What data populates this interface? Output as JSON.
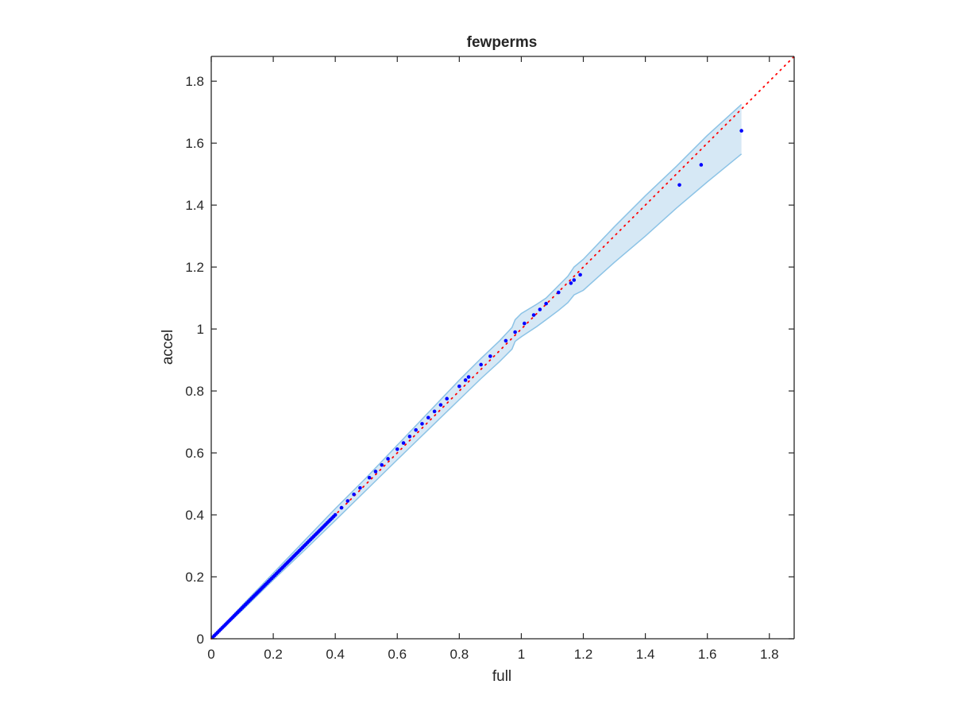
{
  "chart_data": {
    "type": "scatter",
    "title": "fewperms",
    "xlabel": "full",
    "ylabel": "accel",
    "xlim": [
      0,
      1.88
    ],
    "ylim": [
      0,
      1.88
    ],
    "x_ticks": [
      0,
      0.2,
      0.4,
      0.6,
      0.8,
      1,
      1.2,
      1.4,
      1.6,
      1.8
    ],
    "y_ticks": [
      0,
      0.2,
      0.4,
      0.6,
      0.8,
      1,
      1.2,
      1.4,
      1.6,
      1.8
    ],
    "x_tick_labels": [
      "0",
      "0.2",
      "0.4",
      "0.6",
      "0.8",
      "1",
      "1.2",
      "1.4",
      "1.6",
      "1.8"
    ],
    "y_tick_labels": [
      "0",
      "0.2",
      "0.4",
      "0.6",
      "0.8",
      "1",
      "1.2",
      "1.4",
      "1.6",
      "1.8"
    ],
    "grid": false,
    "legend": "none",
    "colors": {
      "points": "#0000ff",
      "reference_line": "#ff0000",
      "band_fill": "#d6e8f5",
      "band_edge": "#8cc3e6",
      "axes": "#262626"
    },
    "reference_line": {
      "style": "dotted",
      "x": [
        0,
        1.88
      ],
      "y": [
        0,
        1.88
      ]
    },
    "confidence_band": {
      "x": [
        0,
        0.05,
        0.1,
        0.2,
        0.3,
        0.4,
        0.5,
        0.6,
        0.7,
        0.8,
        0.87,
        0.93,
        0.97,
        0.98,
        1.0,
        1.05,
        1.08,
        1.12,
        1.15,
        1.17,
        1.2,
        1.3,
        1.4,
        1.5,
        1.6,
        1.71
      ],
      "upper": [
        0,
        0.054,
        0.108,
        0.212,
        0.316,
        0.42,
        0.52,
        0.625,
        0.73,
        0.835,
        0.905,
        0.962,
        1.005,
        1.03,
        1.05,
        1.08,
        1.1,
        1.14,
        1.17,
        1.2,
        1.225,
        1.33,
        1.43,
        1.525,
        1.625,
        1.725
      ],
      "lower": [
        0,
        0.046,
        0.092,
        0.19,
        0.285,
        0.382,
        0.48,
        0.578,
        0.675,
        0.772,
        0.84,
        0.895,
        0.935,
        0.96,
        0.975,
        1.008,
        1.03,
        1.06,
        1.085,
        1.11,
        1.125,
        1.215,
        1.3,
        1.39,
        1.475,
        1.565
      ]
    },
    "points": {
      "x": [
        0.005,
        0.01,
        0.015,
        0.02,
        0.025,
        0.03,
        0.035,
        0.04,
        0.045,
        0.05,
        0.055,
        0.06,
        0.065,
        0.07,
        0.075,
        0.08,
        0.085,
        0.09,
        0.095,
        0.1,
        0.105,
        0.11,
        0.115,
        0.12,
        0.125,
        0.13,
        0.135,
        0.14,
        0.145,
        0.15,
        0.155,
        0.16,
        0.165,
        0.17,
        0.175,
        0.18,
        0.185,
        0.19,
        0.195,
        0.2,
        0.205,
        0.21,
        0.215,
        0.22,
        0.225,
        0.23,
        0.235,
        0.24,
        0.245,
        0.25,
        0.255,
        0.26,
        0.265,
        0.27,
        0.275,
        0.28,
        0.285,
        0.29,
        0.295,
        0.3,
        0.305,
        0.31,
        0.315,
        0.32,
        0.325,
        0.33,
        0.335,
        0.34,
        0.345,
        0.35,
        0.355,
        0.36,
        0.365,
        0.37,
        0.375,
        0.38,
        0.385,
        0.39,
        0.395,
        0.4,
        0.42,
        0.44,
        0.46,
        0.48,
        0.51,
        0.53,
        0.55,
        0.57,
        0.6,
        0.62,
        0.64,
        0.66,
        0.68,
        0.7,
        0.72,
        0.74,
        0.76,
        0.8,
        0.82,
        0.83,
        0.87,
        0.9,
        0.95,
        0.98,
        1.01,
        1.04,
        1.06,
        1.08,
        1.12,
        1.16,
        1.17,
        1.19,
        1.51,
        1.58,
        1.71
      ],
      "y": [
        0.005,
        0.01,
        0.015,
        0.02,
        0.025,
        0.03,
        0.035,
        0.04,
        0.045,
        0.05,
        0.055,
        0.06,
        0.065,
        0.07,
        0.075,
        0.08,
        0.085,
        0.09,
        0.095,
        0.1,
        0.105,
        0.11,
        0.115,
        0.12,
        0.125,
        0.13,
        0.135,
        0.14,
        0.145,
        0.15,
        0.155,
        0.16,
        0.165,
        0.17,
        0.175,
        0.18,
        0.185,
        0.19,
        0.195,
        0.2,
        0.205,
        0.21,
        0.215,
        0.22,
        0.225,
        0.23,
        0.235,
        0.24,
        0.245,
        0.25,
        0.255,
        0.26,
        0.265,
        0.27,
        0.275,
        0.28,
        0.285,
        0.29,
        0.295,
        0.3,
        0.305,
        0.31,
        0.315,
        0.32,
        0.325,
        0.33,
        0.335,
        0.34,
        0.345,
        0.35,
        0.355,
        0.36,
        0.365,
        0.37,
        0.375,
        0.38,
        0.385,
        0.39,
        0.395,
        0.4,
        0.423,
        0.445,
        0.466,
        0.487,
        0.52,
        0.54,
        0.561,
        0.581,
        0.612,
        0.632,
        0.653,
        0.674,
        0.694,
        0.714,
        0.734,
        0.755,
        0.775,
        0.815,
        0.835,
        0.845,
        0.885,
        0.912,
        0.962,
        0.99,
        1.018,
        1.045,
        1.063,
        1.082,
        1.118,
        1.148,
        1.158,
        1.175,
        1.465,
        1.53,
        1.64
      ]
    }
  }
}
